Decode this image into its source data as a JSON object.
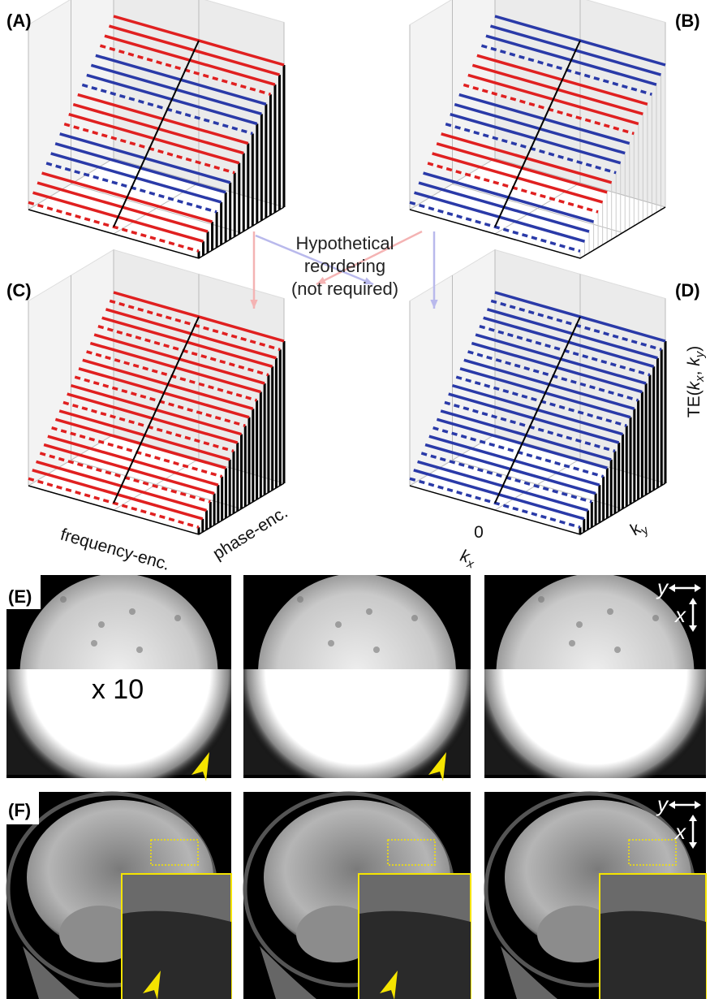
{
  "panel_labels": [
    "(A)",
    "(B)",
    "(C)",
    "(D)",
    "(E)",
    "(F)"
  ],
  "reorder_note": [
    "Hypothetical",
    "reordering",
    "(not required)"
  ],
  "axis_labels": {
    "frequency": "frequency-enc.",
    "phase": "phase-enc.",
    "kx_zero": "0",
    "kx": [
      "k",
      "x"
    ],
    "ky": [
      "k",
      "y"
    ],
    "te": [
      "TE(",
      "k",
      "x",
      ", ",
      "k",
      "y",
      ")"
    ]
  },
  "scale_note": "x 10",
  "direction_labels": {
    "y": "y",
    "x": "x"
  }
}
